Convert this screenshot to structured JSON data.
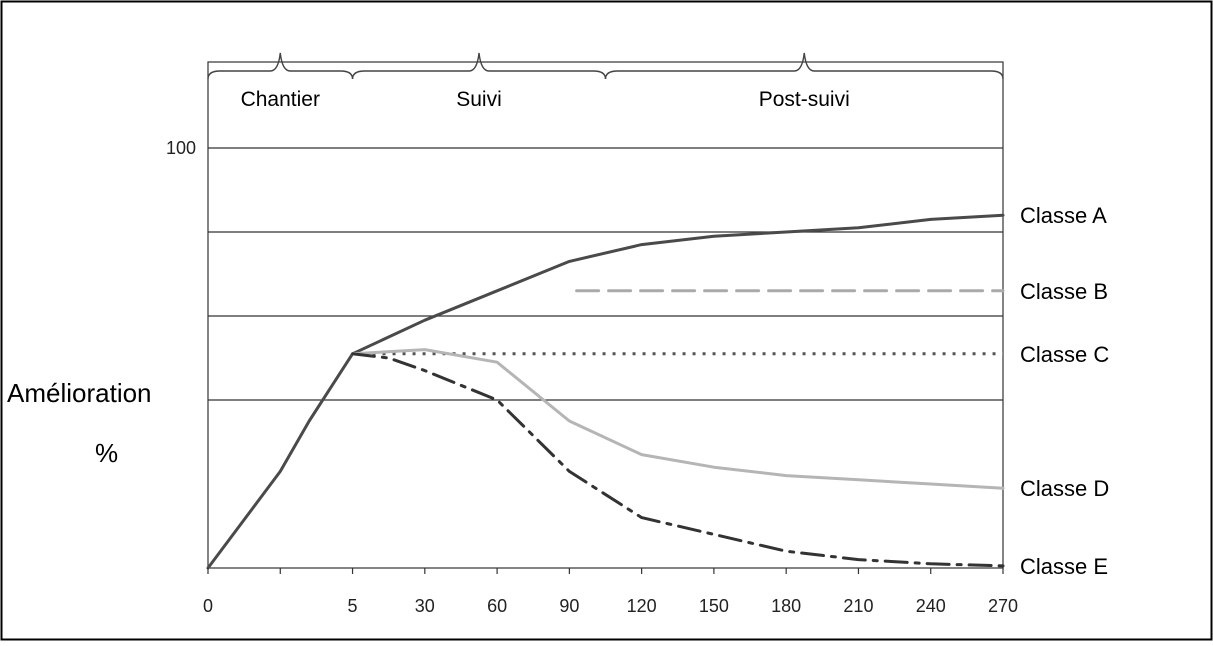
{
  "chart_data": {
    "type": "line",
    "x_tick_labels": [
      "0",
      "",
      "5",
      "30",
      "60",
      "90",
      "120",
      "150",
      "180",
      "210",
      "240",
      "270"
    ],
    "y_tick_labels": [
      "100"
    ],
    "ylabel_line1": "Amélioration",
    "ylabel_line2": "%",
    "ylim": [
      0,
      100
    ],
    "phases": [
      {
        "label": "Chantier",
        "start": 0,
        "end": 2
      },
      {
        "label": "Suivi",
        "start": 2,
        "end": 5.5
      },
      {
        "label": "Post-suivi",
        "start": 5.5,
        "end": 11
      }
    ],
    "reference_lines": [
      100,
      80,
      60,
      40
    ],
    "series": [
      {
        "name": "Classe A",
        "color": "#4a4a4a",
        "style": "solid",
        "points": [
          [
            0,
            0
          ],
          [
            1,
            23
          ],
          [
            1.4,
            35
          ],
          [
            2,
            51
          ],
          [
            3,
            59
          ],
          [
            4,
            66
          ],
          [
            5,
            73
          ],
          [
            6,
            77
          ],
          [
            7,
            79
          ],
          [
            8,
            80
          ],
          [
            9,
            81
          ],
          [
            10,
            83
          ],
          [
            11,
            84
          ]
        ]
      },
      {
        "name": "Classe B",
        "color": "#aaaaaa",
        "style": "dashed",
        "points": [
          [
            5.1,
            66
          ],
          [
            11,
            66
          ]
        ]
      },
      {
        "name": "Classe C",
        "color": "#555555",
        "style": "dotted",
        "points": [
          [
            2,
            51
          ],
          [
            11,
            51
          ]
        ]
      },
      {
        "name": "Classe D",
        "color": "#b5b5b5",
        "style": "solid",
        "points": [
          [
            2,
            51
          ],
          [
            3,
            52
          ],
          [
            4,
            49
          ],
          [
            5,
            35
          ],
          [
            6,
            27
          ],
          [
            7,
            24
          ],
          [
            8,
            22
          ],
          [
            9,
            21
          ],
          [
            10,
            20
          ],
          [
            11,
            19
          ]
        ]
      },
      {
        "name": "Classe E",
        "color": "#333333",
        "style": "dashdot",
        "points": [
          [
            2,
            51
          ],
          [
            2.5,
            50
          ],
          [
            3,
            47
          ],
          [
            4,
            40
          ],
          [
            5,
            23
          ],
          [
            6,
            12
          ],
          [
            7,
            8
          ],
          [
            8,
            4
          ],
          [
            9,
            2
          ],
          [
            10,
            1
          ],
          [
            11,
            0.5
          ]
        ]
      }
    ],
    "legend_position": "right, at line ends"
  }
}
